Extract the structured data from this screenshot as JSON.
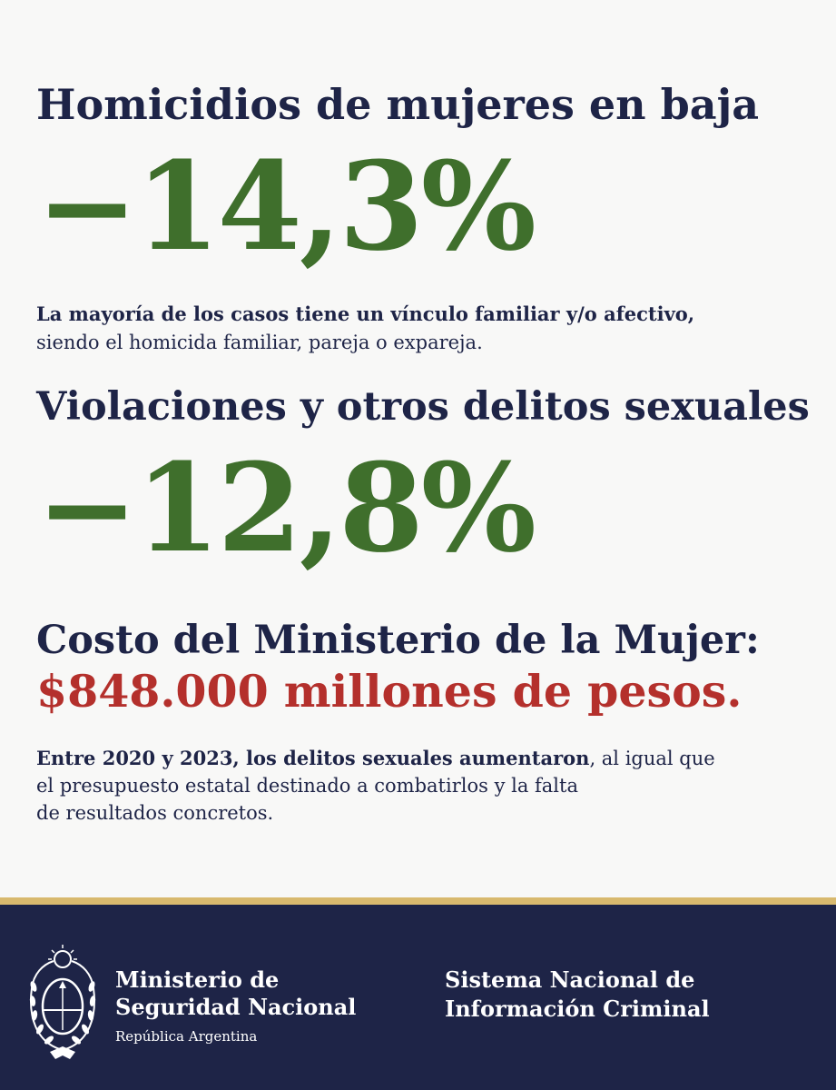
{
  "section1": {
    "heading": "Homicidios de mujeres en baja",
    "value": "−14,3%",
    "note_bold": "La mayoría de los casos tiene un vínculo familiar y/o afectivo,",
    "note_regular": "siendo el homicida familiar, pareja o expareja."
  },
  "section2": {
    "heading": "Violaciones y otros delitos sexuales",
    "value": "−12,8%"
  },
  "section3": {
    "heading": "Costo del Ministerio de la Mujer:",
    "cost": "$848.000 millones de pesos.",
    "note_bold": "Entre 2020 y 2023, los delitos sexuales aumentaron",
    "note_line1_rest": ", al igual que",
    "note_line2": "el presupuesto estatal destinado a combatirlos y la falta",
    "note_line3": "de resultados concretos."
  },
  "footer": {
    "ministry_line1": "Ministerio de",
    "ministry_line2": "Seguridad Nacional",
    "ministry_line3": "República Argentina",
    "system_line1": "Sistema Nacional de",
    "system_line2": "Información Criminal",
    "emblem_icon": "coat-of-arms-argentina-icon"
  },
  "colors": {
    "navy": "#1e2447",
    "green": "#3f6f2c",
    "red": "#b4302c",
    "gold": "#d8b96e",
    "background": "#f8f8f7"
  }
}
